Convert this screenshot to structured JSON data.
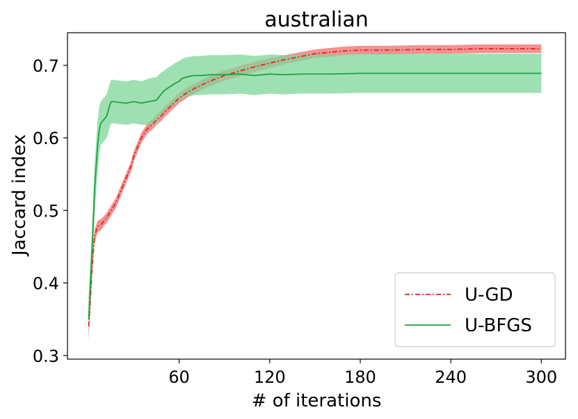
{
  "chart_data": {
    "type": "line",
    "title": "australian",
    "xlabel": "# of iterations",
    "ylabel": "Jaccard index",
    "xlim": [
      -14,
      316
    ],
    "ylim": [
      0.295,
      0.745
    ],
    "xticks": [
      60,
      120,
      180,
      240,
      300
    ],
    "yticks": [
      0.3,
      0.4,
      0.5,
      0.6,
      0.7
    ],
    "ytick_labels": [
      "0.3",
      "0.4",
      "0.5",
      "0.6",
      "0.7"
    ],
    "grid": false,
    "legend_position": "lower-right",
    "series": [
      {
        "name": "U-GD",
        "color": "#e8221d",
        "band_color": "#f08080",
        "linestyle": "dashdot",
        "x": [
          0,
          1,
          2,
          3,
          4,
          6,
          8,
          10,
          12,
          15,
          18,
          20,
          22,
          25,
          28,
          30,
          33,
          35,
          38,
          40,
          43,
          45,
          48,
          50,
          55,
          60,
          65,
          70,
          75,
          80,
          85,
          90,
          95,
          100,
          110,
          120,
          130,
          140,
          150,
          160,
          170,
          180,
          200,
          220,
          240,
          260,
          280,
          300
        ],
        "y": [
          0.34,
          0.37,
          0.41,
          0.44,
          0.465,
          0.478,
          0.48,
          0.485,
          0.49,
          0.5,
          0.51,
          0.52,
          0.53,
          0.545,
          0.56,
          0.575,
          0.59,
          0.6,
          0.61,
          0.615,
          0.62,
          0.625,
          0.63,
          0.635,
          0.645,
          0.655,
          0.662,
          0.668,
          0.673,
          0.678,
          0.682,
          0.686,
          0.689,
          0.692,
          0.698,
          0.703,
          0.708,
          0.712,
          0.716,
          0.718,
          0.72,
          0.721,
          0.721,
          0.722,
          0.722,
          0.723,
          0.723,
          0.723
        ],
        "band": [
          0.012,
          0.012,
          0.011,
          0.01,
          0.009,
          0.008,
          0.008,
          0.007,
          0.007,
          0.007,
          0.007,
          0.007,
          0.007,
          0.007,
          0.007,
          0.007,
          0.007,
          0.007,
          0.007,
          0.007,
          0.007,
          0.007,
          0.007,
          0.007,
          0.007,
          0.007,
          0.007,
          0.007,
          0.007,
          0.007,
          0.007,
          0.007,
          0.007,
          0.007,
          0.007,
          0.007,
          0.006,
          0.006,
          0.006,
          0.006,
          0.006,
          0.006,
          0.006,
          0.006,
          0.006,
          0.006,
          0.006,
          0.006
        ]
      },
      {
        "name": "U-BFGS",
        "color": "#18a53c",
        "band_color": "#7fd59a",
        "linestyle": "solid",
        "x": [
          0,
          1,
          2,
          3,
          4,
          5,
          6,
          7,
          8,
          10,
          12,
          14,
          15,
          17,
          20,
          25,
          30,
          35,
          40,
          45,
          48,
          50,
          52,
          55,
          58,
          60,
          62,
          65,
          70,
          75,
          80,
          90,
          100,
          110,
          120,
          130,
          140,
          150,
          160,
          180,
          200,
          220,
          240,
          260,
          280,
          300
        ],
        "y": [
          0.35,
          0.39,
          0.43,
          0.48,
          0.53,
          0.56,
          0.59,
          0.61,
          0.62,
          0.625,
          0.63,
          0.645,
          0.65,
          0.65,
          0.649,
          0.648,
          0.65,
          0.648,
          0.65,
          0.652,
          0.66,
          0.665,
          0.668,
          0.672,
          0.676,
          0.678,
          0.682,
          0.684,
          0.686,
          0.686,
          0.687,
          0.687,
          0.688,
          0.686,
          0.688,
          0.687,
          0.688,
          0.688,
          0.688,
          0.689,
          0.689,
          0.689,
          0.689,
          0.689,
          0.689,
          0.689
        ],
        "band": [
          0.03,
          0.035,
          0.035,
          0.035,
          0.035,
          0.035,
          0.035,
          0.033,
          0.03,
          0.03,
          0.03,
          0.03,
          0.03,
          0.03,
          0.03,
          0.03,
          0.03,
          0.03,
          0.032,
          0.032,
          0.03,
          0.028,
          0.028,
          0.028,
          0.028,
          0.028,
          0.027,
          0.027,
          0.027,
          0.027,
          0.027,
          0.027,
          0.027,
          0.027,
          0.027,
          0.027,
          0.027,
          0.027,
          0.027,
          0.027,
          0.027,
          0.027,
          0.027,
          0.027,
          0.027,
          0.027
        ]
      }
    ]
  }
}
